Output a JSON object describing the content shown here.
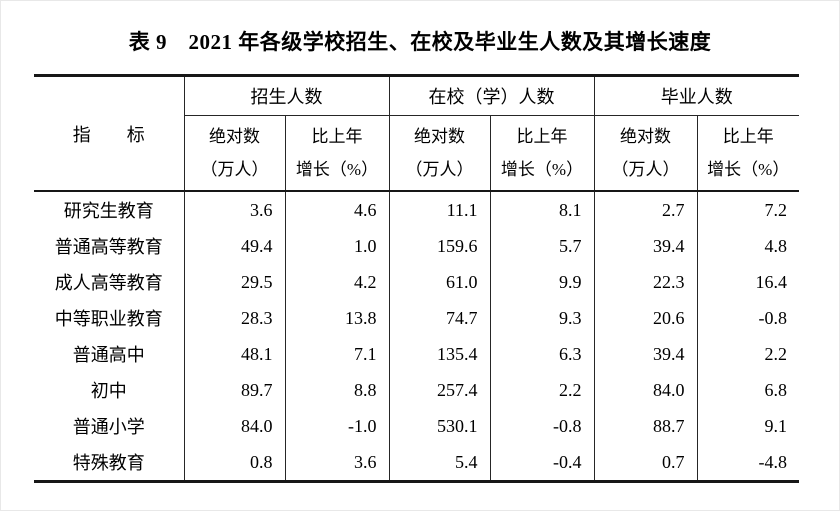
{
  "title": {
    "full": "表 9　2021 年各级学校招生、在校及毕业生人数及其增长速度"
  },
  "table": {
    "indicator_header": "指　　标",
    "groups": [
      {
        "label": "招生人数"
      },
      {
        "label": "在校（学）人数"
      },
      {
        "label": "毕业人数"
      }
    ],
    "subheaders": {
      "abs_line1": "绝对数",
      "abs_line2": "（万人）",
      "growth_line1": "比上年",
      "growth_line2": "增长（%）"
    },
    "rows": [
      {
        "label": "研究生教育",
        "values": [
          "3.6",
          "4.6",
          "11.1",
          "8.1",
          "2.7",
          "7.2"
        ]
      },
      {
        "label": "普通高等教育",
        "values": [
          "49.4",
          "1.0",
          "159.6",
          "5.7",
          "39.4",
          "4.8"
        ]
      },
      {
        "label": "成人高等教育",
        "values": [
          "29.5",
          "4.2",
          "61.0",
          "9.9",
          "22.3",
          "16.4"
        ]
      },
      {
        "label": "中等职业教育",
        "values": [
          "28.3",
          "13.8",
          "74.7",
          "9.3",
          "20.6",
          "-0.8"
        ]
      },
      {
        "label": "普通高中",
        "values": [
          "48.1",
          "7.1",
          "135.4",
          "6.3",
          "39.4",
          "2.2"
        ]
      },
      {
        "label": "初中",
        "values": [
          "89.7",
          "8.8",
          "257.4",
          "2.2",
          "84.0",
          "6.8"
        ]
      },
      {
        "label": "普通小学",
        "values": [
          "84.0",
          "-1.0",
          "530.1",
          "-0.8",
          "88.7",
          "9.1"
        ]
      },
      {
        "label": "特殊教育",
        "values": [
          "0.8",
          "3.6",
          "5.4",
          "-0.4",
          "0.7",
          "-4.8"
        ]
      }
    ]
  },
  "colors": {
    "text": "#000000",
    "rule_heavy": "#171717",
    "rule_light": "#262626",
    "background": "#ffffff"
  },
  "chart_data": {
    "type": "table",
    "title": "表 9 2021 年各级学校招生、在校及毕业生人数及其增长速度",
    "column_groups": [
      "招生人数",
      "在校（学）人数",
      "毕业人数"
    ],
    "columns": [
      "指标",
      "招生人数 绝对数（万人）",
      "招生人数 比上年增长（%）",
      "在校（学）人数 绝对数（万人）",
      "在校（学）人数 比上年增长（%）",
      "毕业人数 绝对数（万人）",
      "毕业人数 比上年增长（%）"
    ],
    "rows": [
      [
        "研究生教育",
        3.6,
        4.6,
        11.1,
        8.1,
        2.7,
        7.2
      ],
      [
        "普通高等教育",
        49.4,
        1.0,
        159.6,
        5.7,
        39.4,
        4.8
      ],
      [
        "成人高等教育",
        29.5,
        4.2,
        61.0,
        9.9,
        22.3,
        16.4
      ],
      [
        "中等职业教育",
        28.3,
        13.8,
        74.7,
        9.3,
        20.6,
        -0.8
      ],
      [
        "普通高中",
        48.1,
        7.1,
        135.4,
        6.3,
        39.4,
        2.2
      ],
      [
        "初中",
        89.7,
        8.8,
        257.4,
        2.2,
        84.0,
        6.8
      ],
      [
        "普通小学",
        84.0,
        -1.0,
        530.1,
        -0.8,
        88.7,
        9.1
      ],
      [
        "特殊教育",
        0.8,
        3.6,
        5.4,
        -0.4,
        0.7,
        -4.8
      ]
    ]
  }
}
